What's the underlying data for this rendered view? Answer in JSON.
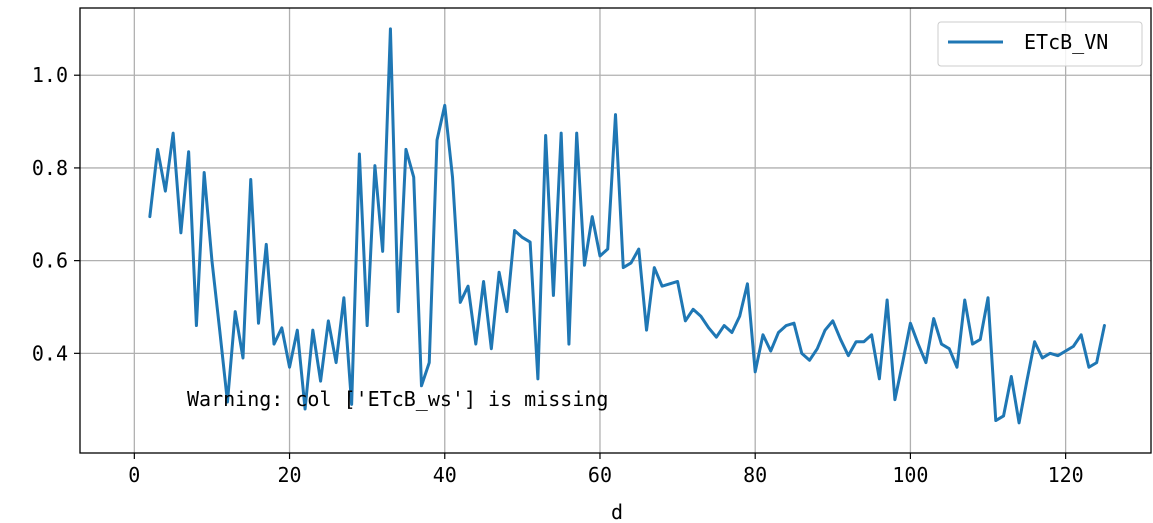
{
  "chart_data": {
    "type": "line",
    "xlabel": "d",
    "ylabel": "",
    "xlim": [
      -7,
      131
    ],
    "ylim": [
      0.185,
      1.145
    ],
    "x_ticks": [
      0,
      20,
      40,
      60,
      80,
      100,
      120
    ],
    "x_tick_labels": [
      "0",
      "20",
      "40",
      "60",
      "80",
      "100",
      "120"
    ],
    "y_ticks": [
      0.4,
      0.6,
      0.8,
      1.0
    ],
    "y_tick_labels": [
      "0.4",
      "0.6",
      "0.8",
      "1.0"
    ],
    "grid": true,
    "legend_position": "top-right",
    "annotation": "Warning: col ['ETcB_ws'] is missing",
    "series": [
      {
        "name": "ETcB_VN",
        "color": "#1f77b4",
        "x": [
          2,
          3,
          4,
          5,
          6,
          7,
          8,
          9,
          10,
          11,
          12,
          13,
          14,
          15,
          16,
          17,
          18,
          19,
          20,
          21,
          22,
          23,
          24,
          25,
          26,
          27,
          28,
          29,
          30,
          31,
          32,
          33,
          34,
          35,
          36,
          37,
          38,
          39,
          40,
          41,
          42,
          43,
          44,
          45,
          46,
          47,
          48,
          49,
          50,
          51,
          52,
          53,
          54,
          55,
          56,
          57,
          58,
          59,
          60,
          61,
          62,
          63,
          64,
          65,
          66,
          67,
          68,
          69,
          70,
          71,
          72,
          73,
          74,
          75,
          76,
          77,
          78,
          79,
          80,
          81,
          82,
          83,
          84,
          85,
          86,
          87,
          88,
          89,
          90,
          91,
          92,
          93,
          94,
          95,
          96,
          97,
          98,
          99,
          100,
          101,
          102,
          103,
          104,
          105,
          106,
          107,
          108,
          109,
          110,
          111,
          112,
          113,
          114,
          115,
          116,
          117,
          118,
          119,
          120,
          121,
          122,
          123,
          124,
          125
        ],
        "y": [
          0.695,
          0.84,
          0.75,
          0.875,
          0.66,
          0.835,
          0.46,
          0.79,
          0.6,
          0.45,
          0.295,
          0.49,
          0.39,
          0.775,
          0.465,
          0.635,
          0.42,
          0.455,
          0.37,
          0.45,
          0.28,
          0.45,
          0.34,
          0.47,
          0.38,
          0.52,
          0.29,
          0.83,
          0.46,
          0.805,
          0.62,
          1.1,
          0.49,
          0.84,
          0.78,
          0.33,
          0.38,
          0.86,
          0.935,
          0.78,
          0.51,
          0.545,
          0.42,
          0.555,
          0.41,
          0.575,
          0.49,
          0.665,
          0.65,
          0.64,
          0.345,
          0.87,
          0.525,
          0.875,
          0.42,
          0.875,
          0.59,
          0.695,
          0.61,
          0.625,
          0.915,
          0.585,
          0.595,
          0.625,
          0.45,
          0.585,
          0.545,
          0.55,
          0.555,
          0.47,
          0.495,
          0.48,
          0.455,
          0.435,
          0.46,
          0.445,
          0.48,
          0.55,
          0.36,
          0.44,
          0.405,
          0.445,
          0.46,
          0.465,
          0.4,
          0.385,
          0.41,
          0.45,
          0.47,
          0.43,
          0.395,
          0.425,
          0.425,
          0.44,
          0.345,
          0.515,
          0.3,
          0.38,
          0.465,
          0.42,
          0.38,
          0.475,
          0.42,
          0.41,
          0.37,
          0.515,
          0.42,
          0.43,
          0.52,
          0.255,
          0.265,
          0.35,
          0.25,
          0.34,
          0.425,
          0.39,
          0.4,
          0.395,
          0.405,
          0.415,
          0.44,
          0.37,
          0.38,
          0.46
        ]
      }
    ]
  }
}
